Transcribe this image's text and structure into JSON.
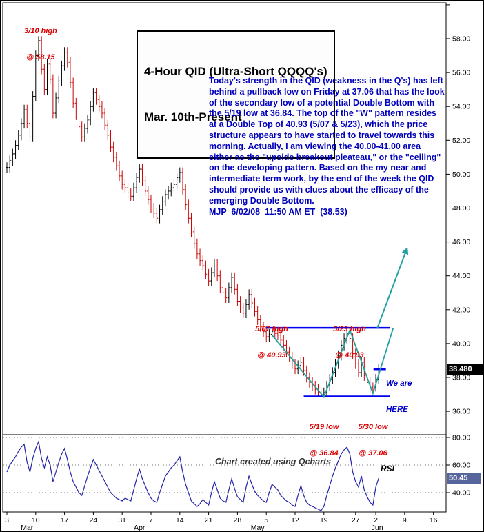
{
  "title_box": {
    "line1": "4-Hour QID (Ultra-Short QQQQ's)",
    "line2": "Mar. 10th-Present"
  },
  "commentary": {
    "color": "#0000bb",
    "lines": [
      "Today's strength in the QID (weakness in the Q's) has left",
      "behind a pullback low on Friday at 37.06 that has the look",
      "of the secondary low of a potential Double Bottom with",
      "the 5/19 low at 36.84. The top of the \"W\" pattern resides",
      "at a Double Top of 40.93 (5/07 & 5/23), which the price",
      "structure appears to have started to travel towards this",
      "morning. Actually, I am viewing the 40.00-41.00 area",
      "either as the \"upside breakout pleateau,\" or the \"ceiling\"",
      "on the developing pattern. Based on the my near and",
      "intermediate term work, by the end of the week the QID",
      "should provide us with clues about the efficacy of the",
      "emerging Double Bottom.",
      "MJP  6/02/08  11:50 AM ET  (38.53)"
    ]
  },
  "annotations": {
    "high_310": {
      "line1": "3/10 high",
      "line2": "@ 58.15"
    },
    "high_507": {
      "line1": "5/07 high",
      "line2": "@ 40.93"
    },
    "high_523": {
      "line1": "5/23 high",
      "line2": "@ 40.93"
    },
    "low_519": {
      "line1": "5/19 low",
      "line2": "@ 36.84"
    },
    "low_530": {
      "line1": "5/30 low",
      "line2": "@ 37.06"
    },
    "we_are_here": {
      "line1": "We are",
      "line2": "HERE"
    },
    "watermark": "Chart created using Qcharts",
    "rsi_label": "RSI"
  },
  "price_axis": {
    "current": "38.480"
  },
  "rsi_axis_box": {
    "current": "50.45"
  },
  "chart_data": {
    "type": "ohlc-bar",
    "title": "4-Hour QID (Ultra-Short QQQQ's) Mar. 10th-Present",
    "panels": [
      "price",
      "rsi"
    ],
    "ylim": [
      34.5,
      60.1
    ],
    "price_series": {
      "timeframe": "4-hour bars, Mar 3 - Jun 2 2008",
      "closes": [
        50.4,
        50.8,
        51.2,
        51.7,
        52.3,
        53.0,
        53.8,
        53.0,
        52.2,
        54.6,
        57.0,
        57.9,
        56.2,
        55.0,
        56.5,
        55.6,
        53.6,
        54.5,
        55.5,
        56.4,
        57.2,
        56.6,
        55.4,
        54.2,
        53.5,
        52.8,
        52.2,
        52.7,
        53.2,
        54.0,
        54.8,
        54.4,
        54.0,
        53.6,
        52.9,
        52.3,
        51.6,
        51.0,
        50.5,
        49.9,
        49.4,
        49.2,
        48.9,
        48.7,
        49.2,
        49.8,
        50.3,
        49.6,
        49.0,
        48.5,
        48.0,
        47.7,
        47.4,
        47.9,
        48.4,
        48.8,
        49.0,
        49.2,
        49.4,
        49.8,
        50.1,
        49.1,
        48.2,
        47.4,
        46.6,
        45.9,
        45.3,
        44.9,
        44.6,
        44.1,
        43.7,
        44.2,
        44.7,
        44.0,
        43.3,
        43.0,
        42.7,
        43.3,
        43.9,
        43.2,
        42.5,
        42.1,
        41.8,
        42.3,
        42.9,
        42.4,
        41.9,
        41.4,
        41.0,
        40.7,
        40.4,
        40.55,
        40.7,
        40.6,
        40.5,
        40.2,
        39.9,
        39.5,
        39.2,
        38.8,
        38.5,
        38.7,
        38.9,
        38.4,
        38.0,
        37.7,
        37.5,
        37.3,
        37.1,
        36.95,
        37.1,
        37.5,
        37.9,
        38.3,
        38.8,
        39.3,
        39.9,
        40.3,
        40.6,
        40.3,
        39.4,
        38.8,
        38.3,
        38.9,
        38.1,
        37.7,
        37.4,
        37.2,
        37.9,
        38.48
      ],
      "bar_range": 0.3,
      "extremes": {
        "11": {
          "high": 58.15
        },
        "94": {
          "high": 40.93
        },
        "110": {
          "low": 36.84
        },
        "119": {
          "high": 40.93
        },
        "127": {
          "low": 37.06
        },
        "128": {
          "low": 37.2
        }
      },
      "clamp_high": 58.15,
      "clamp_low": 36.84,
      "up_color": "#000000",
      "down_color": "#cc0000"
    },
    "key_points": [
      {
        "date": "3/10",
        "type": "high",
        "value": 58.15
      },
      {
        "date": "5/07",
        "type": "high",
        "value": 40.93
      },
      {
        "date": "5/19",
        "type": "low",
        "value": 36.84
      },
      {
        "date": "5/23",
        "type": "high",
        "value": 40.93
      },
      {
        "date": "5/30",
        "type": "low",
        "value": 37.06
      },
      {
        "date": "6/02 11:50 AM ET",
        "type": "last",
        "value": 38.53
      }
    ],
    "price_ticks": [
      {
        "v": 60,
        "label": ""
      },
      {
        "v": 58,
        "label": "58.00"
      },
      {
        "v": 56,
        "label": "56.00"
      },
      {
        "v": 54,
        "label": "54.00"
      },
      {
        "v": 52,
        "label": "52.00"
      },
      {
        "v": 50,
        "label": "50.00"
      },
      {
        "v": 48,
        "label": "48.00"
      },
      {
        "v": 46,
        "label": "46.00"
      },
      {
        "v": 44,
        "label": "44.00"
      },
      {
        "v": 42,
        "label": "42.00"
      },
      {
        "v": 40,
        "label": "40.00"
      },
      {
        "v": 38,
        "label": "38.00"
      },
      {
        "v": 36,
        "label": "36.00"
      }
    ],
    "current_price": 38.48,
    "rsi": {
      "values": [
        55,
        60,
        63,
        66,
        70,
        73,
        75,
        62,
        55,
        65,
        72,
        77,
        65,
        58,
        66,
        60,
        48,
        55,
        62,
        68,
        72,
        64,
        55,
        48,
        44,
        40,
        38,
        45,
        52,
        58,
        64,
        60,
        56,
        52,
        48,
        44,
        40,
        38,
        36,
        35,
        34,
        36,
        35,
        34,
        42,
        50,
        57,
        50,
        45,
        40,
        36,
        34,
        33,
        40,
        46,
        52,
        55,
        58,
        60,
        63,
        66,
        55,
        46,
        40,
        34,
        32,
        30,
        32,
        35,
        33,
        31,
        40,
        48,
        42,
        36,
        34,
        33,
        42,
        50,
        43,
        37,
        35,
        33,
        44,
        52,
        46,
        41,
        38,
        36,
        34,
        33,
        40,
        46,
        44,
        42,
        38,
        36,
        34,
        33,
        31,
        30,
        38,
        45,
        38,
        33,
        31,
        30,
        29,
        28,
        27,
        30,
        38,
        45,
        52,
        58,
        63,
        68,
        71,
        73,
        68,
        55,
        48,
        44,
        52,
        42,
        37,
        33,
        31,
        44,
        50.45
      ],
      "current": 50.45,
      "ticks": [
        {
          "v": 80,
          "label": "80.00"
        },
        {
          "v": 60,
          "label": "60.00"
        },
        {
          "v": 40,
          "label": "40.00"
        }
      ],
      "color": "#2222aa"
    },
    "x_axis": {
      "day_ticks": [
        {
          "label": "3",
          "i": 0
        },
        {
          "label": "10",
          "i": 10
        },
        {
          "label": "17",
          "i": 20
        },
        {
          "label": "24",
          "i": 30
        },
        {
          "label": "31",
          "i": 40
        },
        {
          "label": "7",
          "i": 50
        },
        {
          "label": "14",
          "i": 60
        },
        {
          "label": "21",
          "i": 70
        },
        {
          "label": "28",
          "i": 80
        },
        {
          "label": "5",
          "i": 90
        },
        {
          "label": "12",
          "i": 100
        },
        {
          "label": "19",
          "i": 110
        },
        {
          "label": "27",
          "i": 121
        },
        {
          "label": "2",
          "i": 128
        },
        {
          "label": "9",
          "i": 138
        },
        {
          "label": "16",
          "i": 148
        }
      ],
      "month_ticks": [
        {
          "label": "Mar",
          "i": 7
        },
        {
          "label": "Apr",
          "i": 46
        },
        {
          "label": "May",
          "i": 87
        },
        {
          "label": "Jun",
          "i": 128.5
        }
      ]
    },
    "overlays": {
      "blue": "#0000ee",
      "teal": "#20a0a0",
      "double_top_line": {
        "price": 40.93,
        "i1": 90,
        "i2": 133
      },
      "double_bottom_line": {
        "price": 36.88,
        "i1": 103,
        "i2": 133
      },
      "here_tick": {
        "price": 38.48,
        "i1": 127.2,
        "i2": 131.5
      },
      "w_pattern": [
        [
          92,
          40.5
        ],
        [
          110,
          36.84
        ],
        [
          119,
          40.8
        ],
        [
          127,
          37.06
        ],
        [
          134,
          40.9
        ]
      ],
      "arrow": {
        "from": [
          128.5,
          40.9
        ],
        "to": [
          139,
          45.7
        ]
      }
    }
  }
}
